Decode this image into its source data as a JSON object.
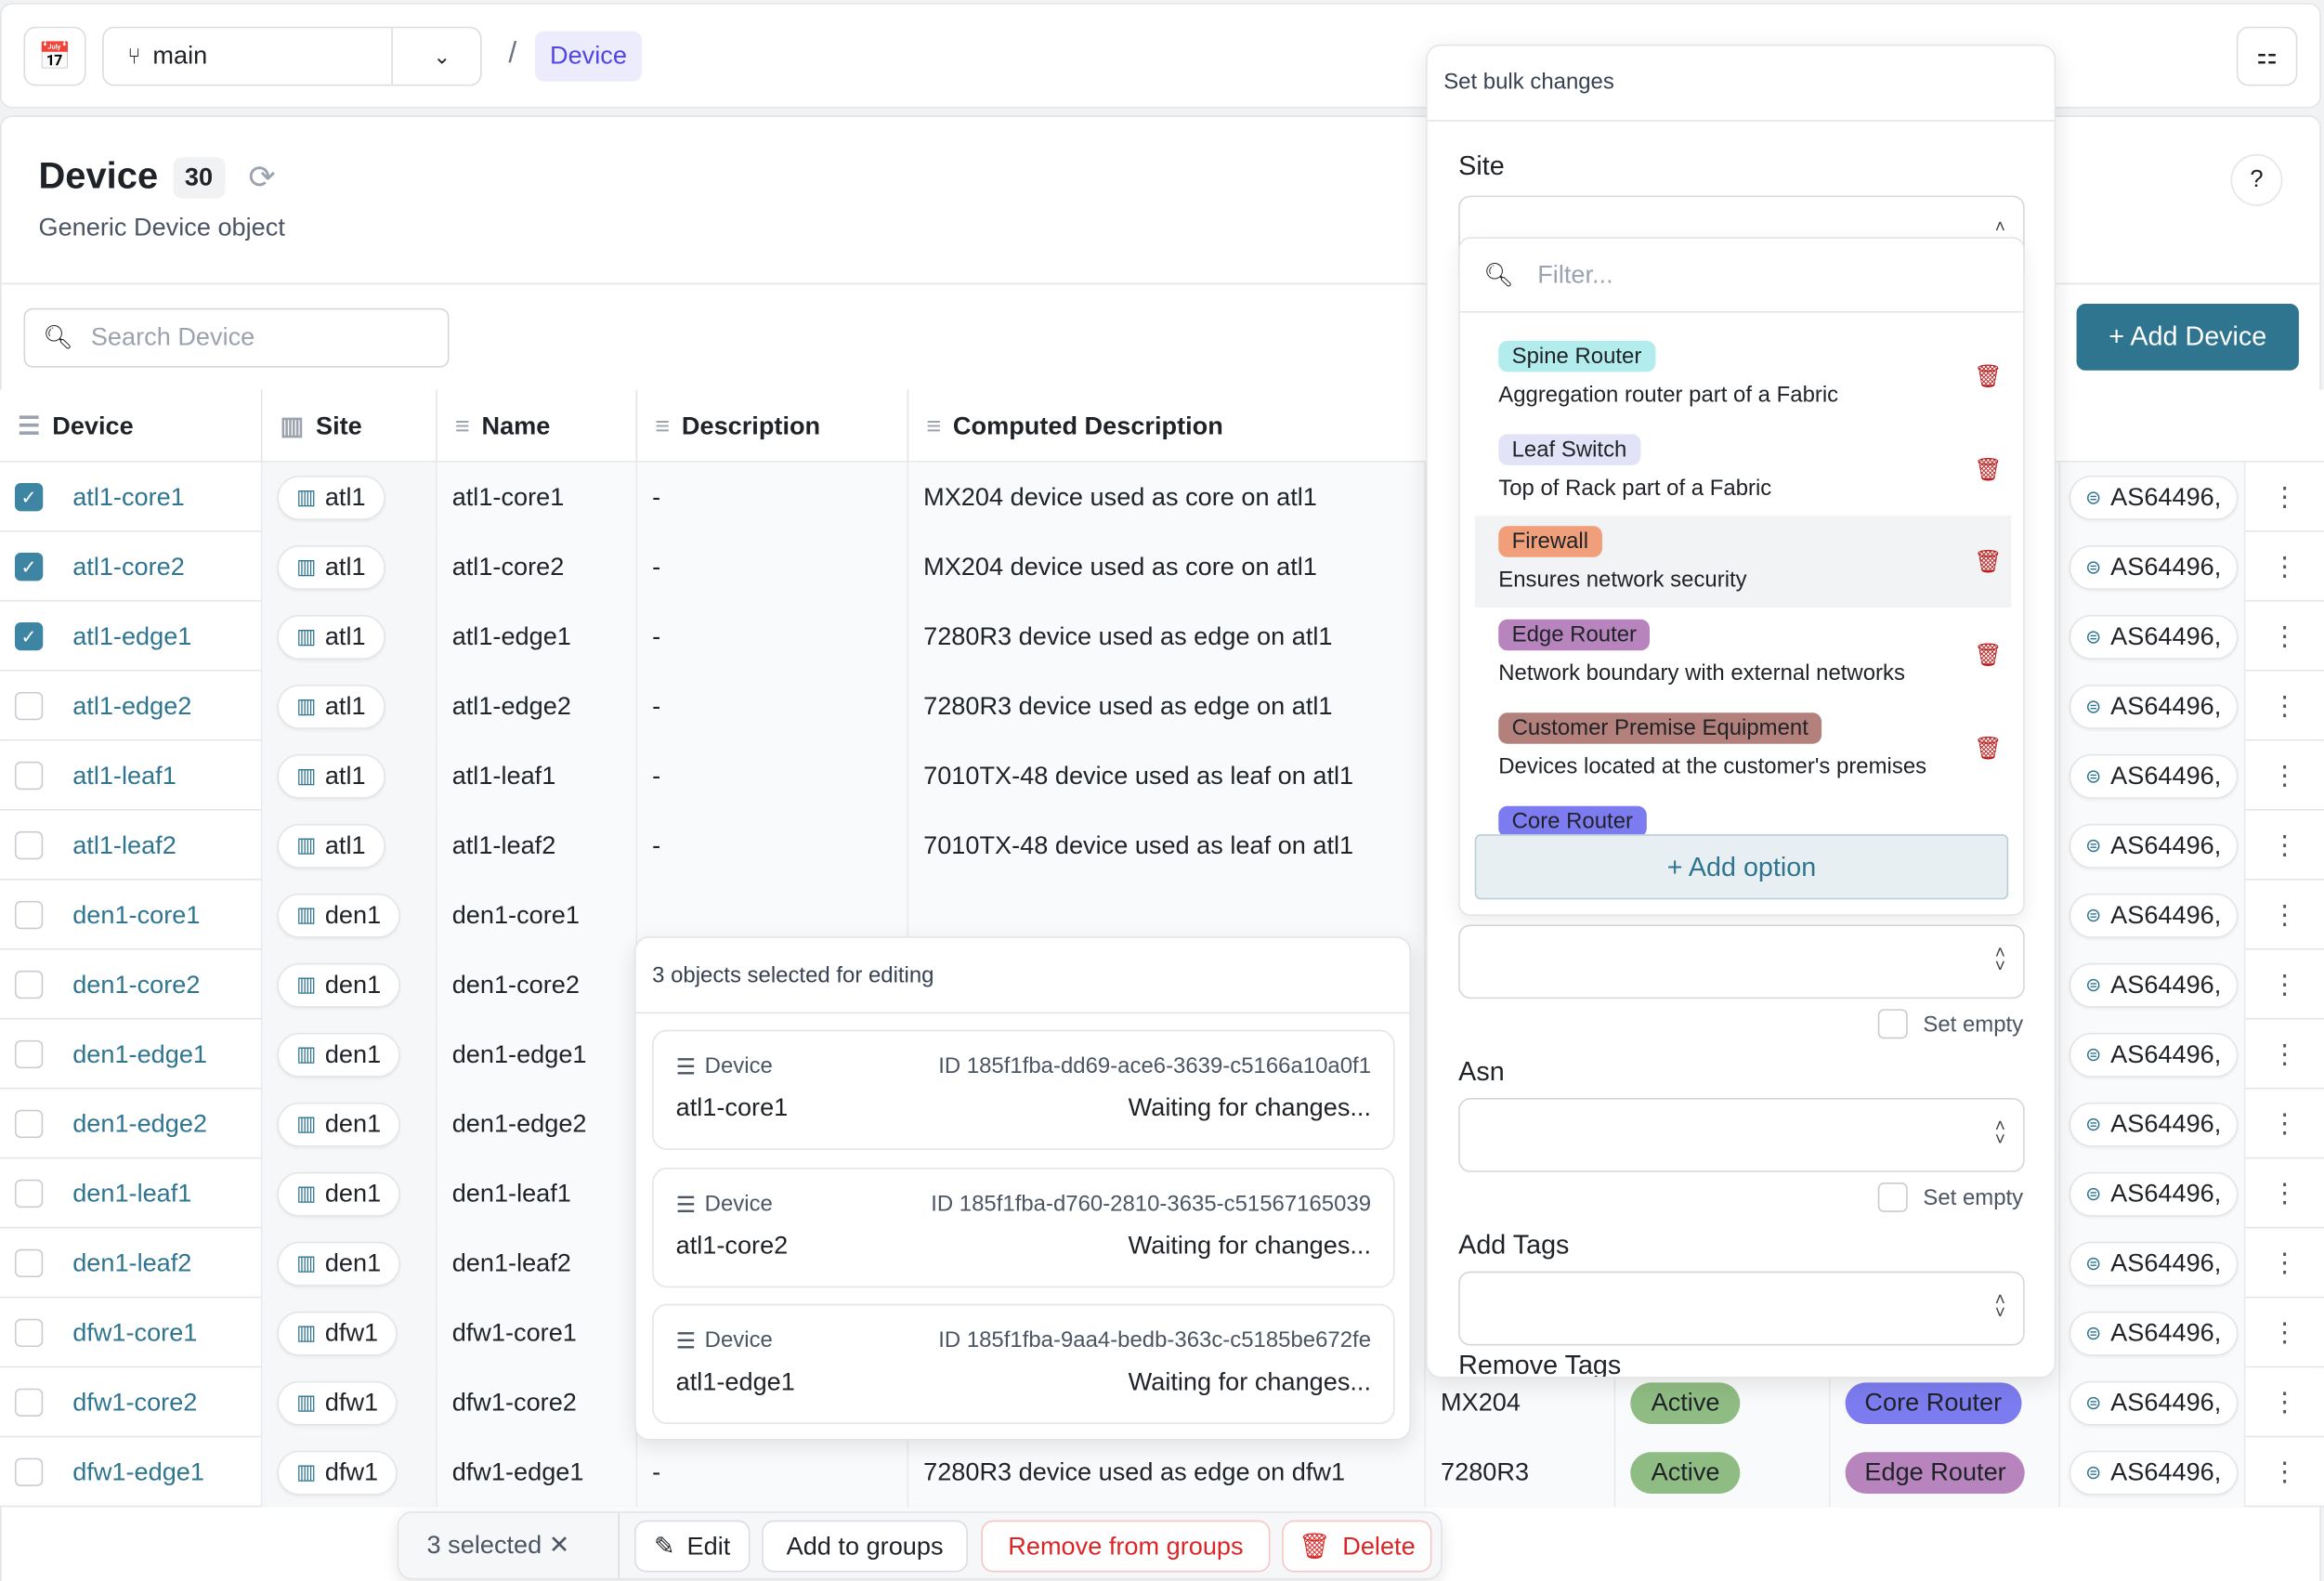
{
  "topbar": {
    "branch": "main",
    "breadcrumb_sep": "/",
    "breadcrumb": "Device"
  },
  "header": {
    "title": "Device",
    "count": "30",
    "subtitle": "Generic Device object",
    "help": "?"
  },
  "search": {
    "placeholder": "Search Device"
  },
  "add_button": "+ Add Device",
  "columns": [
    "Device",
    "Site",
    "Name",
    "Description",
    "Computed Description"
  ],
  "rows": [
    {
      "device": "atl1-core1",
      "checked": true,
      "site": "atl1",
      "name": "atl1-core1",
      "description": "-",
      "computed": "MX204 device used as core on atl1",
      "asn": "AS64496,"
    },
    {
      "device": "atl1-core2",
      "checked": true,
      "site": "atl1",
      "name": "atl1-core2",
      "description": "-",
      "computed": "MX204 device used as core on atl1",
      "asn": "AS64496,"
    },
    {
      "device": "atl1-edge1",
      "checked": true,
      "site": "atl1",
      "name": "atl1-edge1",
      "description": "-",
      "computed": "7280R3 device used as edge on atl1",
      "asn": "AS64496,"
    },
    {
      "device": "atl1-edge2",
      "checked": false,
      "site": "atl1",
      "name": "atl1-edge2",
      "description": "-",
      "computed": "7280R3 device used as edge on atl1",
      "asn": "AS64496,"
    },
    {
      "device": "atl1-leaf1",
      "checked": false,
      "site": "atl1",
      "name": "atl1-leaf1",
      "description": "-",
      "computed": "7010TX-48 device used as leaf on atl1",
      "asn": "AS64496,"
    },
    {
      "device": "atl1-leaf2",
      "checked": false,
      "site": "atl1",
      "name": "atl1-leaf2",
      "description": "-",
      "computed": "7010TX-48 device used as leaf on atl1",
      "asn": "AS64496,"
    },
    {
      "device": "den1-core1",
      "checked": false,
      "site": "den1",
      "name": "den1-core1",
      "asn": "AS64496,"
    },
    {
      "device": "den1-core2",
      "checked": false,
      "site": "den1",
      "name": "den1-core2",
      "asn": "AS64496,"
    },
    {
      "device": "den1-edge1",
      "checked": false,
      "site": "den1",
      "name": "den1-edge1",
      "asn": "AS64496,"
    },
    {
      "device": "den1-edge2",
      "checked": false,
      "site": "den1",
      "name": "den1-edge2",
      "asn": "AS64496,"
    },
    {
      "device": "den1-leaf1",
      "checked": false,
      "site": "den1",
      "name": "den1-leaf1",
      "asn": "AS64496,"
    },
    {
      "device": "den1-leaf2",
      "checked": false,
      "site": "den1",
      "name": "den1-leaf2",
      "asn": "AS64496,"
    },
    {
      "device": "dfw1-core1",
      "checked": false,
      "site": "dfw1",
      "name": "dfw1-core1",
      "asn": "AS64496,"
    },
    {
      "device": "dfw1-core2",
      "checked": false,
      "site": "dfw1",
      "name": "dfw1-core2",
      "type": "MX204",
      "status": "Active",
      "role": "Core Router",
      "role_color": "#7c7cf0",
      "asn": "AS64496,"
    },
    {
      "device": "dfw1-edge1",
      "checked": false,
      "site": "dfw1",
      "name": "dfw1-edge1",
      "description": "-",
      "computed": "7280R3 device used as edge on dfw1",
      "type": "7280R3",
      "status": "Active",
      "role": "Edge Router",
      "role_color": "#b784bd",
      "asn": "AS64496,"
    }
  ],
  "bulk": {
    "title": "Set bulk changes",
    "site_label": "Site",
    "filter_placeholder": "Filter...",
    "options": [
      {
        "label": "Spine Router",
        "desc": "Aggregation router part of a Fabric",
        "color": "#b3ecec"
      },
      {
        "label": "Leaf Switch",
        "desc": "Top of Rack part of a Fabric",
        "color": "#e3e3f7"
      },
      {
        "label": "Firewall",
        "desc": "Ensures network security",
        "color": "#f09f7a",
        "highlighted": true
      },
      {
        "label": "Edge Router",
        "desc": "Network boundary with external networks",
        "color": "#b784bd"
      },
      {
        "label": "Customer Premise Equipment",
        "desc": "Devices located at the customer's premises",
        "color": "#b4807b"
      },
      {
        "label": "Core Router",
        "desc": "",
        "color": "#7c7cf0"
      }
    ],
    "add_option": "+ Add option",
    "set_empty": "Set empty",
    "asn_label": "Asn",
    "add_tags_label": "Add Tags",
    "remove_tags_label": "Remove Tags"
  },
  "selection": {
    "title": "3 objects selected for editing",
    "items": [
      {
        "kind": "Device",
        "id": "ID 185f1fba-dd69-ace6-3639-c5166a10a0f1",
        "name": "atl1-core1",
        "status": "Waiting for changes..."
      },
      {
        "kind": "Device",
        "id": "ID 185f1fba-d760-2810-3635-c51567165039",
        "name": "atl1-core2",
        "status": "Waiting for changes..."
      },
      {
        "kind": "Device",
        "id": "ID 185f1fba-9aa4-bedb-363c-c5185be672fe",
        "name": "atl1-edge1",
        "status": "Waiting for changes..."
      }
    ]
  },
  "actionbar": {
    "selected": "3 selected",
    "edit": "Edit",
    "add_groups": "Add to groups",
    "remove_groups": "Remove from groups",
    "delete": "Delete"
  },
  "colors": {
    "accent": "#2f7590",
    "checkbox": "#3d85a3",
    "active": "#8fbc83",
    "danger": "#dc2626"
  }
}
